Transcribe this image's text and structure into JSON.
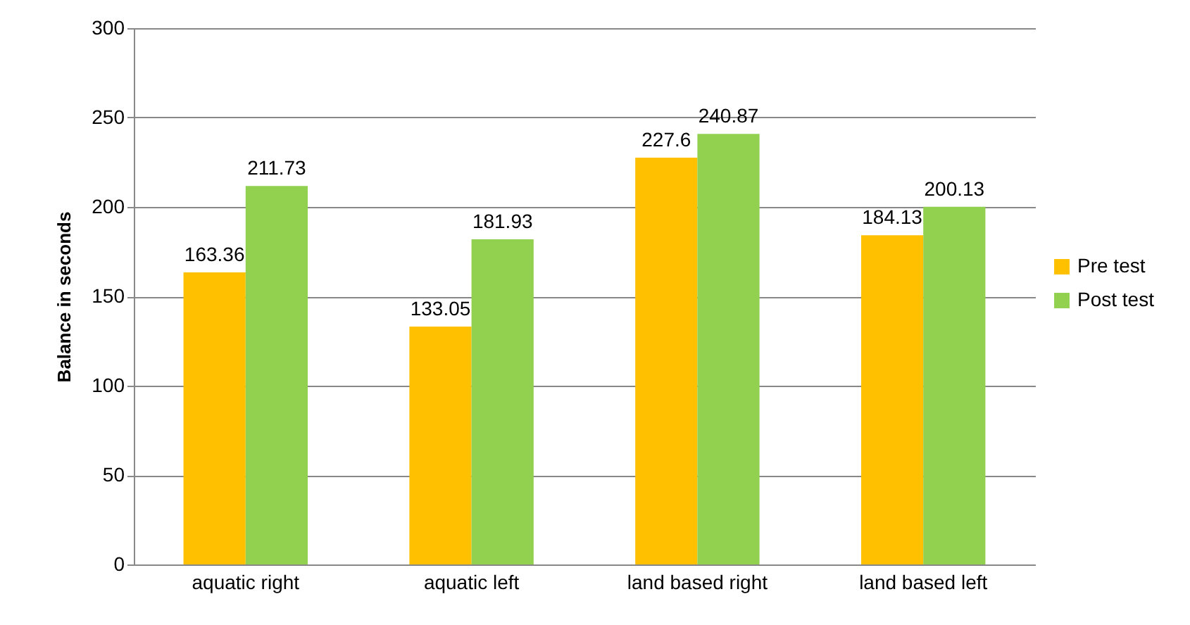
{
  "chart_data": {
    "type": "bar",
    "ylabel": "Balance in seconds",
    "categories": [
      "aquatic right",
      "aquatic left",
      "land based right",
      "land based left"
    ],
    "series": [
      {
        "name": "Pre test",
        "color": "#ffc000",
        "values": [
          163.36,
          133.05,
          227.6,
          184.13
        ]
      },
      {
        "name": "Post test",
        "color": "#92d050",
        "values": [
          211.73,
          181.93,
          240.87,
          200.13
        ]
      }
    ],
    "ylim": [
      0,
      300
    ],
    "yticks": [
      0,
      50,
      100,
      150,
      200,
      250,
      300
    ],
    "grid": "y",
    "legend": "right",
    "data_labels": true
  }
}
